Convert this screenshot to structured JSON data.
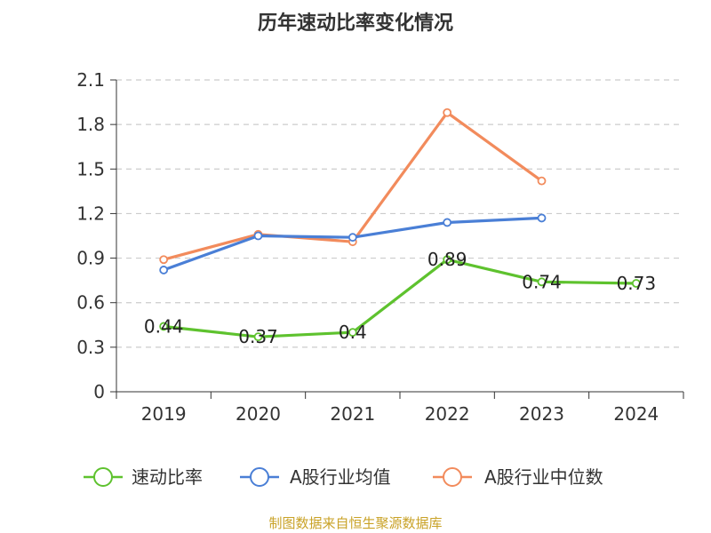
{
  "chart_data": {
    "type": "line",
    "title": "历年速动比率变化情况",
    "categories": [
      "2019",
      "2020",
      "2021",
      "2022",
      "2023",
      "2024"
    ],
    "ylim": [
      0,
      2.1
    ],
    "yticks": [
      "0",
      "0.3",
      "0.6",
      "0.9",
      "1.2",
      "1.5",
      "1.8",
      "2.1"
    ],
    "grid": true,
    "legend_position": "bottom",
    "series": [
      {
        "name": "速动比率",
        "color": "#5ec22e",
        "values": [
          0.44,
          0.37,
          0.4,
          0.89,
          0.74,
          0.73
        ],
        "labels": [
          "0.44",
          "0.37",
          "0.4",
          "0.89",
          "0.74",
          "0.73"
        ],
        "show_labels": true
      },
      {
        "name": "A股行业均值",
        "color": "#4a7fd6",
        "values": [
          0.82,
          1.05,
          1.04,
          1.14,
          1.17,
          null
        ],
        "show_labels": false
      },
      {
        "name": "A股行业中位数",
        "color": "#f28b5c",
        "values": [
          0.89,
          1.06,
          1.01,
          1.88,
          1.42,
          null
        ],
        "show_labels": false
      }
    ],
    "source_text": "制图数据来自恒生聚源数据库"
  }
}
